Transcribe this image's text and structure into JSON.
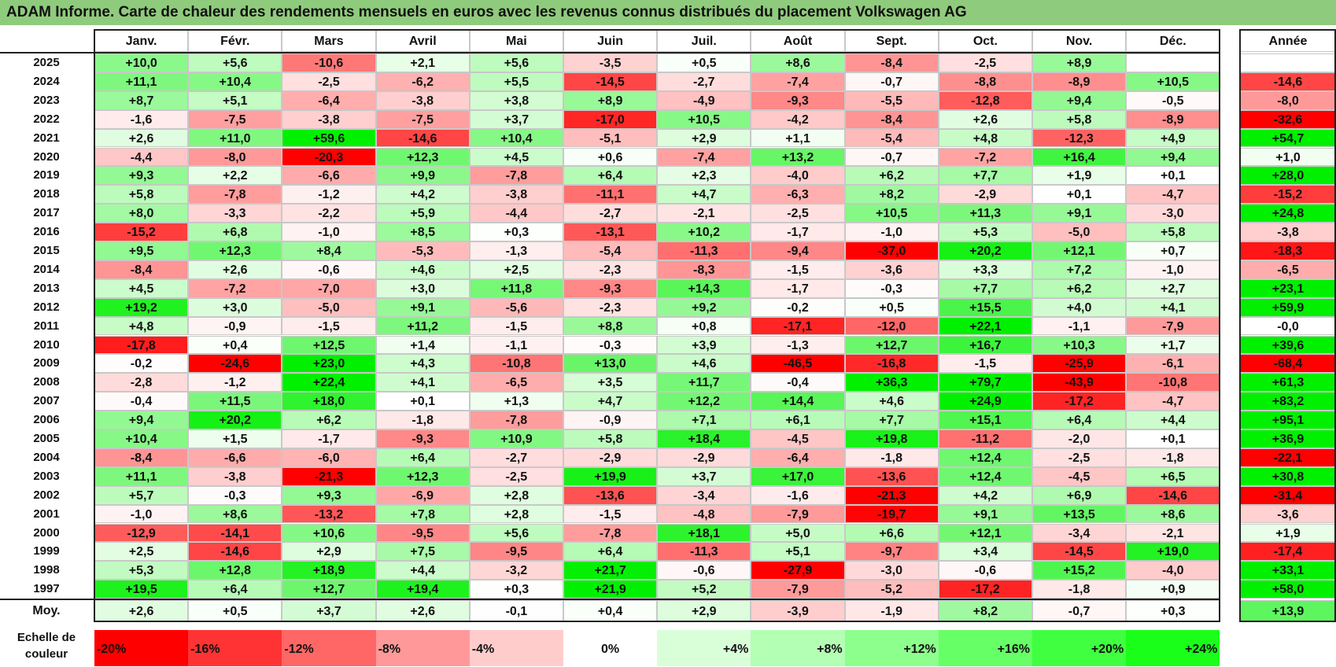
{
  "title": "ADAM Informe. Carte de chaleur des rendements mensuels en euros avec les revenus connus distribués du placement Volkswagen AG",
  "chart_data": {
    "type": "heatmap",
    "months": [
      "Janv.",
      "Févr.",
      "Mars",
      "Avril",
      "Mai",
      "Juin",
      "Juil.",
      "Août",
      "Sept.",
      "Oct.",
      "Nov.",
      "Déc."
    ],
    "year_header": "Année",
    "rows": [
      {
        "year": "2025",
        "values": [
          "+10,0",
          "+5,6",
          "-10,6",
          "+2,1",
          "+5,6",
          "-3,5",
          "+0,5",
          "+8,6",
          "-8,4",
          "-2,5",
          "+8,9",
          ""
        ],
        "annual": ""
      },
      {
        "year": "2024",
        "values": [
          "+11,1",
          "+10,4",
          "-2,5",
          "-6,2",
          "+5,5",
          "-14,5",
          "-2,7",
          "-7,4",
          "-0,7",
          "-8,8",
          "-8,9",
          "+10,5"
        ],
        "annual": "-14,6"
      },
      {
        "year": "2023",
        "values": [
          "+8,7",
          "+5,1",
          "-6,4",
          "-3,8",
          "+3,8",
          "+8,9",
          "-4,9",
          "-9,3",
          "-5,5",
          "-12,8",
          "+9,4",
          "-0,5"
        ],
        "annual": "-8,0"
      },
      {
        "year": "2022",
        "values": [
          "-1,6",
          "-7,5",
          "-3,8",
          "-7,5",
          "+3,7",
          "-17,0",
          "+10,5",
          "-4,2",
          "-8,4",
          "+2,6",
          "+5,8",
          "-8,9"
        ],
        "annual": "-32,6"
      },
      {
        "year": "2021",
        "values": [
          "+2,6",
          "+11,0",
          "+59,6",
          "-14,6",
          "+10,4",
          "-5,1",
          "+2,9",
          "+1,1",
          "-5,4",
          "+4,8",
          "-12,3",
          "+4,9"
        ],
        "annual": "+54,7"
      },
      {
        "year": "2020",
        "values": [
          "-4,4",
          "-8,0",
          "-20,3",
          "+12,3",
          "+4,5",
          "+0,6",
          "-7,4",
          "+13,2",
          "-0,7",
          "-7,2",
          "+16,4",
          "+9,4"
        ],
        "annual": "+1,0"
      },
      {
        "year": "2019",
        "values": [
          "+9,3",
          "+2,2",
          "-6,6",
          "+9,9",
          "-7,8",
          "+6,4",
          "+2,3",
          "-4,0",
          "+6,2",
          "+7,7",
          "+1,9",
          "+0,1"
        ],
        "annual": "+28,0"
      },
      {
        "year": "2018",
        "values": [
          "+5,8",
          "-7,8",
          "-1,2",
          "+4,2",
          "-3,8",
          "-11,1",
          "+4,7",
          "-6,3",
          "+8,2",
          "-2,9",
          "+0,1",
          "-4,7"
        ],
        "annual": "-15,2"
      },
      {
        "year": "2017",
        "values": [
          "+8,0",
          "-3,3",
          "-2,2",
          "+5,9",
          "-4,4",
          "-2,7",
          "-2,1",
          "-2,5",
          "+10,5",
          "+11,3",
          "+9,1",
          "-3,0"
        ],
        "annual": "+24,8"
      },
      {
        "year": "2016",
        "values": [
          "-15,2",
          "+6,8",
          "-1,0",
          "+8,5",
          "+0,3",
          "-13,1",
          "+10,2",
          "-1,7",
          "-1,0",
          "+5,3",
          "-5,0",
          "+5,8"
        ],
        "annual": "-3,8"
      },
      {
        "year": "2015",
        "values": [
          "+9,5",
          "+12,3",
          "+8,4",
          "-5,3",
          "-1,3",
          "-5,4",
          "-11,3",
          "-9,4",
          "-37,0",
          "+20,2",
          "+12,1",
          "+0,7"
        ],
        "annual": "-18,3"
      },
      {
        "year": "2014",
        "values": [
          "-8,4",
          "+2,6",
          "-0,6",
          "+4,6",
          "+2,5",
          "-2,3",
          "-8,3",
          "-1,5",
          "-3,6",
          "+3,3",
          "+7,2",
          "-1,0"
        ],
        "annual": "-6,5"
      },
      {
        "year": "2013",
        "values": [
          "+4,5",
          "-7,2",
          "-7,0",
          "+3,0",
          "+11,8",
          "-9,3",
          "+14,3",
          "-1,7",
          "-0,3",
          "+7,7",
          "+6,2",
          "+2,7"
        ],
        "annual": "+23,1"
      },
      {
        "year": "2012",
        "values": [
          "+19,2",
          "+3,0",
          "-5,0",
          "+9,1",
          "-5,6",
          "-2,3",
          "+9,2",
          "-0,2",
          "+0,5",
          "+15,5",
          "+4,0",
          "+4,1"
        ],
        "annual": "+59,9"
      },
      {
        "year": "2011",
        "values": [
          "+4,8",
          "-0,9",
          "-1,5",
          "+11,2",
          "-1,5",
          "+8,8",
          "+0,8",
          "-17,1",
          "-12,0",
          "+22,1",
          "-1,1",
          "-7,9"
        ],
        "annual": "-0,0"
      },
      {
        "year": "2010",
        "values": [
          "-17,8",
          "+0,4",
          "+12,5",
          "+1,4",
          "-1,1",
          "-0,3",
          "+3,9",
          "-1,3",
          "+12,7",
          "+16,7",
          "+10,3",
          "+1,7"
        ],
        "annual": "+39,6"
      },
      {
        "year": "2009",
        "values": [
          "-0,2",
          "-24,6",
          "+23,0",
          "+4,3",
          "-10,8",
          "+13,0",
          "+4,6",
          "-46,5",
          "-16,8",
          "-1,5",
          "-25,9",
          "-6,1"
        ],
        "annual": "-68,4"
      },
      {
        "year": "2008",
        "values": [
          "-2,8",
          "-1,2",
          "+22,4",
          "+4,1",
          "-6,5",
          "+3,5",
          "+11,7",
          "-0,4",
          "+36,3",
          "+79,7",
          "-43,9",
          "-10,8"
        ],
        "annual": "+61,3"
      },
      {
        "year": "2007",
        "values": [
          "-0,4",
          "+11,5",
          "+18,0",
          "+0,1",
          "+1,3",
          "+4,7",
          "+12,2",
          "+14,4",
          "+4,6",
          "+24,9",
          "-17,2",
          "-4,7"
        ],
        "annual": "+83,2"
      },
      {
        "year": "2006",
        "values": [
          "+9,4",
          "+20,2",
          "+6,2",
          "-1,8",
          "-7,8",
          "-0,9",
          "+7,1",
          "+6,1",
          "+7,7",
          "+15,1",
          "+6,4",
          "+4,4"
        ],
        "annual": "+95,1"
      },
      {
        "year": "2005",
        "values": [
          "+10,4",
          "+1,5",
          "-1,7",
          "-9,3",
          "+10,9",
          "+5,8",
          "+18,4",
          "-4,5",
          "+19,8",
          "-11,2",
          "-2,0",
          "+0,1"
        ],
        "annual": "+36,9"
      },
      {
        "year": "2004",
        "values": [
          "-8,4",
          "-6,6",
          "-6,0",
          "+6,4",
          "-2,7",
          "-2,9",
          "-2,9",
          "-6,4",
          "-1,8",
          "+12,4",
          "-2,5",
          "-1,8"
        ],
        "annual": "-22,1"
      },
      {
        "year": "2003",
        "values": [
          "+11,1",
          "-3,8",
          "-21,3",
          "+12,3",
          "-2,5",
          "+19,9",
          "+3,7",
          "+17,0",
          "-13,6",
          "+12,4",
          "-4,5",
          "+6,5"
        ],
        "annual": "+30,8"
      },
      {
        "year": "2002",
        "values": [
          "+5,7",
          "-0,3",
          "+9,3",
          "-6,9",
          "+2,8",
          "-13,6",
          "-3,4",
          "-1,6",
          "-21,3",
          "+4,2",
          "+6,9",
          "-14,6"
        ],
        "annual": "-31,4"
      },
      {
        "year": "2001",
        "values": [
          "-1,0",
          "+8,6",
          "-13,2",
          "+7,8",
          "+2,8",
          "-1,5",
          "-4,8",
          "-7,9",
          "-19,7",
          "+9,1",
          "+13,5",
          "+8,6"
        ],
        "annual": "-3,6"
      },
      {
        "year": "2000",
        "values": [
          "-12,9",
          "-14,1",
          "+10,6",
          "-9,5",
          "+5,6",
          "-7,8",
          "+18,1",
          "+5,0",
          "+6,6",
          "+12,1",
          "-3,4",
          "-2,1"
        ],
        "annual": "+1,9"
      },
      {
        "year": "1999",
        "values": [
          "+2,5",
          "-14,6",
          "+2,9",
          "+7,5",
          "-9,5",
          "+6,4",
          "-11,3",
          "+5,1",
          "-9,7",
          "+3,4",
          "-14,5",
          "+19,0"
        ],
        "annual": "-17,4"
      },
      {
        "year": "1998",
        "values": [
          "+5,3",
          "+12,8",
          "+18,9",
          "+4,4",
          "-3,2",
          "+21,7",
          "-0,6",
          "-27,9",
          "-3,0",
          "-0,6",
          "+15,2",
          "-4,0"
        ],
        "annual": "+33,1"
      },
      {
        "year": "1997",
        "values": [
          "+19,5",
          "+6,4",
          "+12,7",
          "+19,4",
          "+0,3",
          "+21,9",
          "+5,2",
          "-7,9",
          "-5,2",
          "-17,2",
          "-1,8",
          "+0,9"
        ],
        "annual": "+58,0"
      }
    ],
    "average": {
      "label": "Moy.",
      "values": [
        "+2,6",
        "+0,5",
        "+3,7",
        "+2,6",
        "-0,1",
        "+0,4",
        "+2,9",
        "-3,9",
        "-1,9",
        "+8,2",
        "-0,7",
        "+0,3"
      ],
      "annual": "+13,9"
    },
    "scale": {
      "label_line1": "Echelle de",
      "label_line2": "couleur",
      "steps": [
        {
          "label": "-20%",
          "value": -20,
          "color": "#ff0000"
        },
        {
          "label": "-16%",
          "value": -16,
          "color": "#ff3333"
        },
        {
          "label": "-12%",
          "value": -12,
          "color": "#ff6666"
        },
        {
          "label": "-8%",
          "value": -8,
          "color": "#ff9999"
        },
        {
          "label": "-4%",
          "value": -4,
          "color": "#ffcccc"
        },
        {
          "label": "0%",
          "value": 0,
          "color": "#ffffff"
        },
        {
          "label": "+4%",
          "value": 4,
          "color": "#d9ffd9"
        },
        {
          "label": "+8%",
          "value": 8,
          "color": "#b3ffb3"
        },
        {
          "label": "+12%",
          "value": 12,
          "color": "#8cff8c"
        },
        {
          "label": "+16%",
          "value": 16,
          "color": "#66ff66"
        },
        {
          "label": "+20%",
          "value": 20,
          "color": "#40ff40"
        },
        {
          "label": "+24%",
          "value": 24,
          "color": "#1aff1a"
        }
      ]
    },
    "colors": {
      "negative_max": "#ff0000",
      "neutral": "#ffffff",
      "positive_max": "#00ee00",
      "title_bar": "#8fcb7c"
    }
  }
}
